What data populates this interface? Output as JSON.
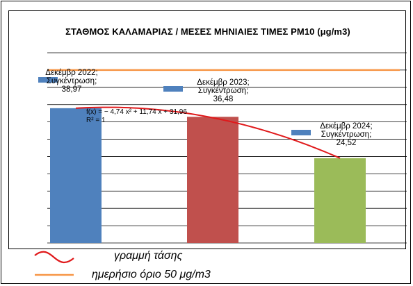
{
  "chart_data": {
    "type": "bar",
    "title": "ΣΤΑΘΜΟΣ ΚΑΛΑΜΑΡΙΑΣ / ΜΕΣΕΣ ΜΗΝΙΑΙΕΣ ΤΙΜΕΣ  PM10 (μg/m3)",
    "xlabel": "",
    "ylabel": "",
    "ylim": [
      0,
      55
    ],
    "grid": true,
    "categories": [
      "Δεκέμβρ 2022",
      "Δεκέμβρ 2023",
      "Δεκέμβρ 2024"
    ],
    "series": [
      {
        "name": "Συγκέντρωση",
        "values": [
          38.97,
          36.48,
          24.52
        ],
        "colors": [
          "#4f81bd",
          "#c0504d",
          "#9bbb59"
        ]
      }
    ],
    "data_labels": [
      {
        "category": "Δεκέμβρ 2022;",
        "series": "Συγκέντρωση;",
        "value": "38,97"
      },
      {
        "category": "Δεκέμβρ 2023;",
        "series": "Συγκέντρωση;",
        "value": "36,48"
      },
      {
        "category": "Δεκέμβρ 2024;",
        "series": "Συγκέντρωση;",
        "value": "24,52"
      }
    ],
    "reference_line": {
      "value": 50,
      "color": "#f79646",
      "label": "ημερήσιο όριο 50 μg/m3"
    },
    "trendline": {
      "type": "polynomial",
      "coefficients": [
        -4.74,
        11.74,
        31.96
      ],
      "equation": "f(x) = − 4,74 x² + 11,74 x + 31,96",
      "r_squared": "R² = 1",
      "color": "#e0191b",
      "label": "γραμμή τάσης"
    },
    "legend": [
      {
        "label": "γραμμή τάσης",
        "color": "#e0191b",
        "kind": "wave"
      },
      {
        "label": "ημερήσιο όριο 50 μg/m3",
        "color": "#f79646",
        "kind": "line"
      }
    ],
    "legend_position": "bottom",
    "label_swatch_color": "#4f81bd"
  }
}
